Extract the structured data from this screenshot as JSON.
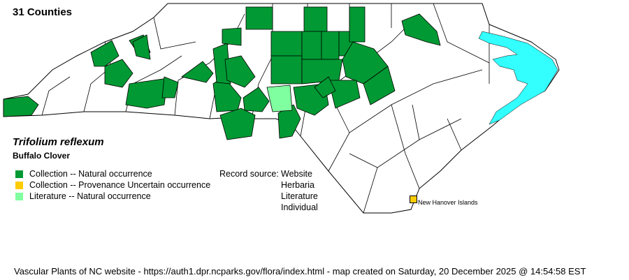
{
  "header": {
    "county_count": "31 Counties"
  },
  "species": {
    "scientific_name": "Trifolium reflexum",
    "common_name": "Buffalo Clover"
  },
  "legend": [
    {
      "label": "Collection -- Natural occurrence",
      "color": "#009933"
    },
    {
      "label": "Collection -- Provenance Uncertain occurrence",
      "color": "#FFCC00"
    },
    {
      "label": "Literature -- Natural occurrence",
      "color": "#80FFA0"
    }
  ],
  "record_source": {
    "label": "Record source:",
    "sources": [
      "Website",
      "Herbaria",
      "Literature",
      "Individual"
    ]
  },
  "map": {
    "water_color": "#33FFFF",
    "island_label": "New Hanover Islands",
    "island_color": "#FFCC00"
  },
  "footer": {
    "text": "Vascular Plants of NC website - https://auth1.dpr.ncparks.gov/flora/index.html - map created on Saturday, 20 December 2025 @ 14:54:58 EST"
  }
}
